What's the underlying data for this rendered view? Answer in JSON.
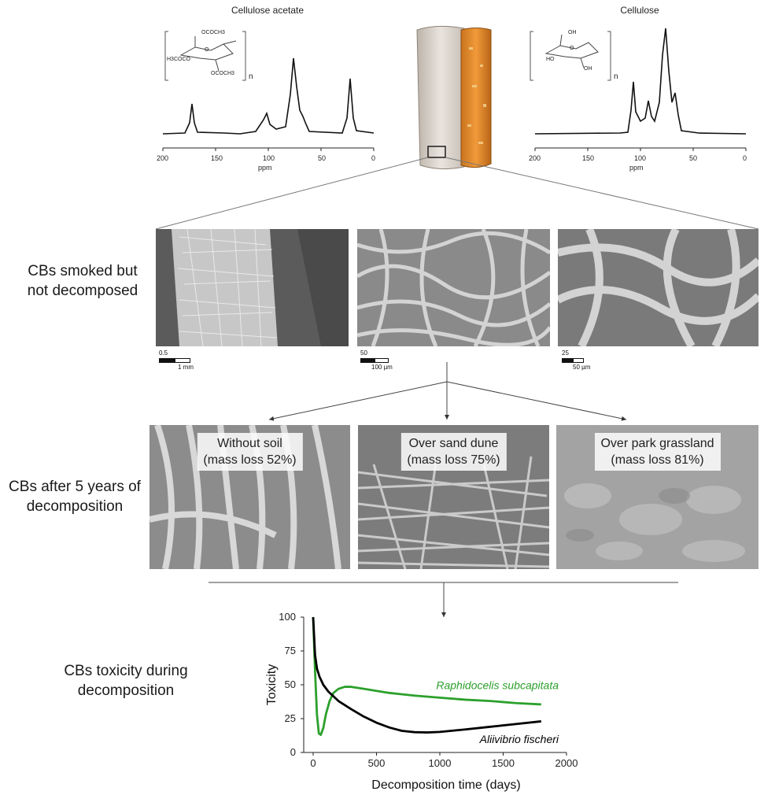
{
  "nmr": {
    "left_title": "Cellulose acetate",
    "right_title": "Cellulose",
    "axis_ticks": [
      "200",
      "150",
      "100",
      "50",
      "0"
    ],
    "axis_unit": "ppm",
    "left_subscript": "n",
    "right_subscript": "n",
    "left_groups": [
      "OCOCH3",
      "O",
      "H3COCO",
      "OCOCH3"
    ],
    "right_groups": [
      "OH",
      "O",
      "HO",
      "OH"
    ]
  },
  "rows": {
    "smoked_label": "CBs smoked but not decomposed",
    "decomposed_label": "CBs after 5 years of decomposition",
    "toxicity_label": "CBs toxicity during decomposition"
  },
  "sem_smoked": [
    {
      "scale_top": "0.5",
      "scale_bottom": "1 mm"
    },
    {
      "scale_top": "50",
      "scale_bottom": "100 µm"
    },
    {
      "scale_top": "25",
      "scale_bottom": "50 µm"
    }
  ],
  "sem_decomposed": [
    {
      "title": "Without soil",
      "mass_loss": "(mass loss 52%)"
    },
    {
      "title": "Over sand dune",
      "mass_loss": "(mass loss 75%)"
    },
    {
      "title": "Over park grassland",
      "mass_loss": "(mass loss 81%)"
    }
  ],
  "chart_data": {
    "type": "line",
    "xlabel": "Decomposition time (days)",
    "ylabel": "Toxicity",
    "xlim": [
      0,
      2000
    ],
    "ylim": [
      0,
      100
    ],
    "xticks": [
      0,
      500,
      1000,
      1500,
      2000
    ],
    "yticks": [
      0,
      25,
      50,
      75,
      100
    ],
    "series": [
      {
        "name": "Raphidocelis subcapitata",
        "color": "#2ca02c",
        "x": [
          0,
          15,
          30,
          45,
          60,
          80,
          100,
          130,
          160,
          200,
          250,
          300,
          400,
          500,
          600,
          800,
          1000,
          1200,
          1400,
          1600,
          1800
        ],
        "y": [
          100,
          60,
          28,
          14,
          13,
          18,
          28,
          38,
          44,
          47,
          48.5,
          48.5,
          47,
          45.5,
          44,
          42,
          40.5,
          39,
          38,
          36.5,
          35.5
        ]
      },
      {
        "name": "Aliivibrio fischeri",
        "color": "#000000",
        "x": [
          0,
          15,
          30,
          50,
          80,
          120,
          160,
          200,
          300,
          400,
          500,
          600,
          700,
          800,
          900,
          1000,
          1200,
          1400,
          1600,
          1800
        ],
        "y": [
          100,
          72,
          62,
          56,
          50,
          45,
          41.5,
          38,
          32,
          26.5,
          22,
          18.5,
          16,
          15,
          14.8,
          15.2,
          17,
          19,
          21,
          23
        ]
      }
    ]
  }
}
